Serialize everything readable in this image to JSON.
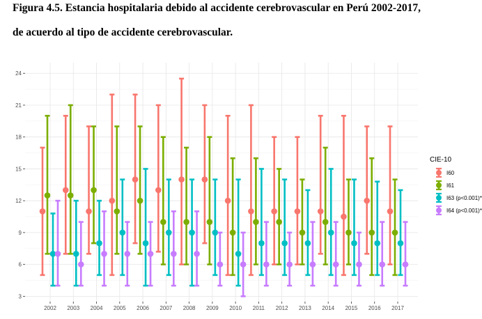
{
  "figure": {
    "title_line1": "Figura 4.5. Estancia hospitalaria debido al accidente cerebrovascular en Perú 2002-2017,",
    "title_line2": "de acuerdo al tipo de accidente cerebrovascular."
  },
  "chart_data": {
    "type": "errorbar",
    "title": "Figura 4.5. Estancia hospitalaria debido al accidente cerebrovascular en Perú 2002-2017, de acuerdo al tipo de accidente cerebrovascular.",
    "xlabel": "",
    "ylabel": "",
    "categories": [
      "2002",
      "2003",
      "2004",
      "2005",
      "2006",
      "2007",
      "2008",
      "2009",
      "2010",
      "2011",
      "2012",
      "2013",
      "2014",
      "2015",
      "2016",
      "2017"
    ],
    "yticks": [
      3,
      6,
      9,
      12,
      15,
      18,
      21,
      24
    ],
    "ylim": [
      2.5,
      25
    ],
    "grid": true,
    "legend": {
      "title": "CIE-10",
      "position": "right"
    },
    "series": [
      {
        "name": "I60",
        "color": "#F8766D",
        "center": [
          11,
          13,
          11,
          12,
          14,
          13,
          14,
          14,
          12,
          11,
          11,
          11,
          11,
          10.5,
          12,
          11
        ],
        "low": [
          5,
          7,
          7,
          5,
          8,
          7.2,
          6,
          8,
          5,
          5,
          6,
          6,
          7,
          5,
          7,
          6
        ],
        "high": [
          17,
          20,
          19,
          22,
          22,
          21,
          23.5,
          21,
          20,
          21,
          18,
          18,
          20,
          20,
          19,
          19
        ]
      },
      {
        "name": "I61",
        "color": "#7CAE00",
        "center": [
          12.5,
          12.5,
          13,
          11,
          12,
          10,
          10,
          10,
          9,
          10,
          10,
          9,
          10,
          9,
          9,
          9
        ],
        "low": [
          7,
          7,
          8,
          7,
          7,
          6,
          6,
          6,
          5,
          6,
          6,
          6,
          6,
          6,
          5,
          5
        ],
        "high": [
          20,
          21,
          19,
          19,
          19,
          18,
          17,
          18,
          16,
          16,
          15,
          14,
          17,
          14,
          16,
          14
        ]
      },
      {
        "name": "I63 (p<0.001)*",
        "color": "#00BFC4",
        "center": [
          7,
          7,
          8,
          9,
          8,
          9,
          9,
          9,
          7,
          8,
          8,
          8,
          9,
          8,
          8,
          8
        ],
        "low": [
          4,
          4,
          5,
          5,
          4,
          5,
          4,
          5,
          4,
          5,
          5,
          5,
          5,
          5,
          5,
          5
        ],
        "high": [
          10.8,
          12,
          12,
          14,
          15,
          14,
          14,
          14,
          14,
          15,
          14,
          13,
          15,
          14,
          13.8,
          13
        ]
      },
      {
        "name": "I64 (p<0.001)*",
        "color": "#C77CFF",
        "center": [
          7,
          6,
          7,
          7,
          7,
          7,
          7,
          6,
          6,
          6,
          6,
          6,
          6,
          6,
          6,
          6
        ],
        "low": [
          4,
          4,
          4,
          4,
          4,
          4,
          4,
          4,
          3,
          4,
          4,
          4,
          4,
          4,
          4,
          4
        ],
        "high": [
          12,
          10,
          11,
          10,
          10,
          11,
          11,
          9,
          9,
          10,
          9,
          10,
          10,
          9,
          10,
          10
        ]
      }
    ]
  }
}
